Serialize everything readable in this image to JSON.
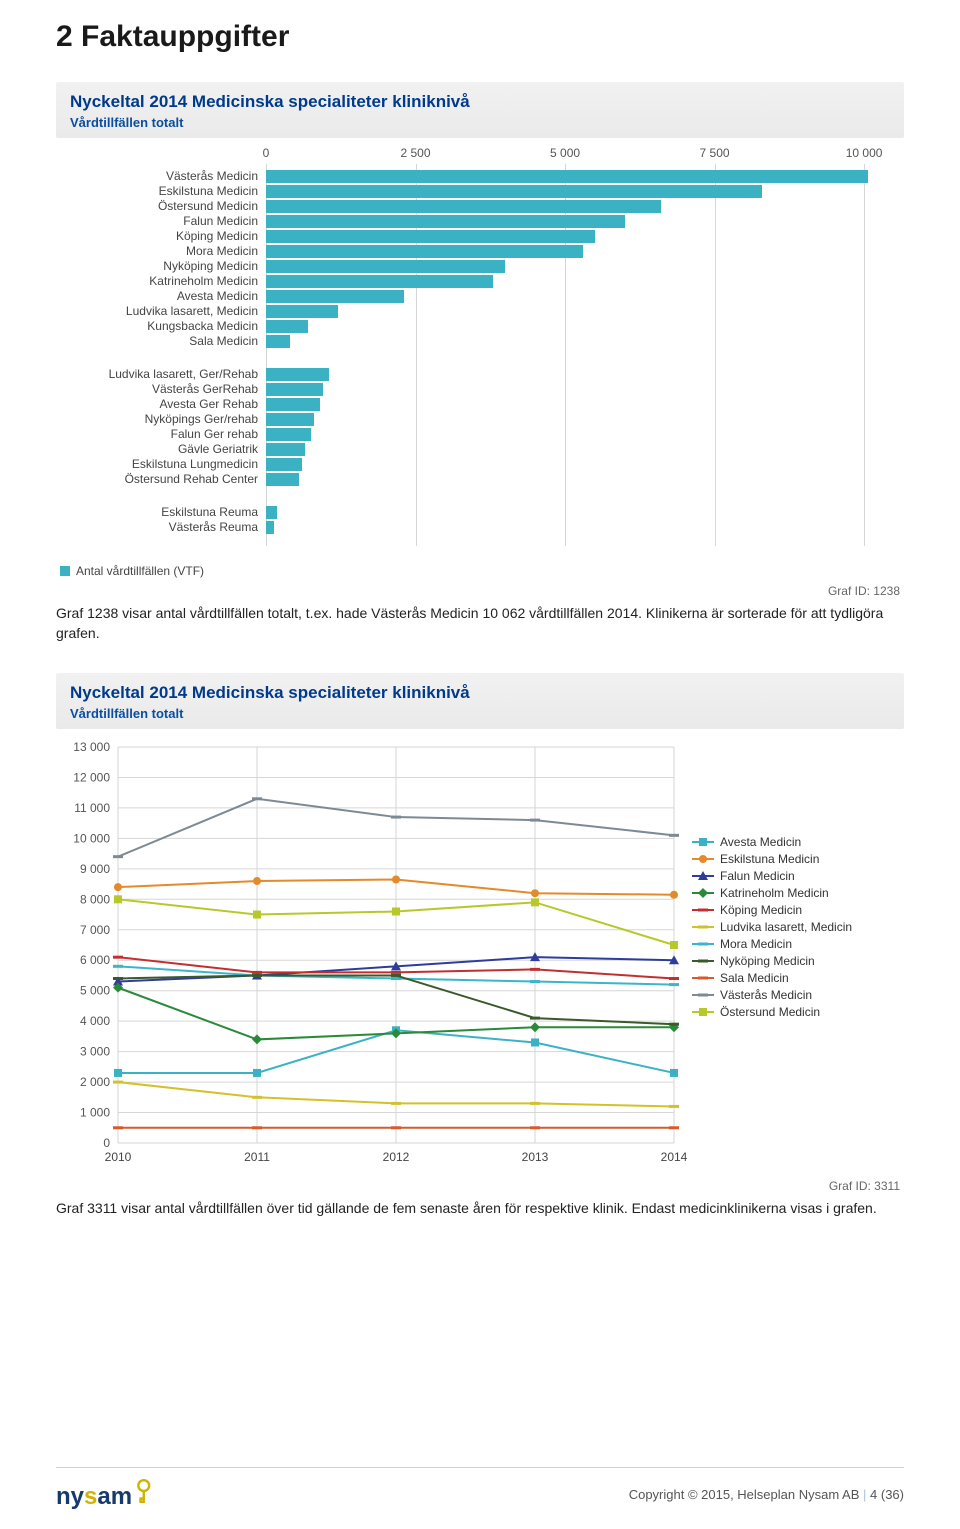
{
  "section_title": "2  Faktauppgifter",
  "chart1": {
    "title": "Nyckeltal 2014 Medicinska specialiteter kliniknivå",
    "subtitle": "Vårdtillfällen totalt",
    "type": "bar",
    "x_ticks": [
      0,
      2500,
      5000,
      7500,
      10000
    ],
    "x_tick_labels": [
      "0",
      "2 500",
      "5 000",
      "7 500",
      "10 000"
    ],
    "xlim": [
      0,
      10500
    ],
    "bar_color": "#3bb2c4",
    "grid_color": "#d6d6d6",
    "background_color": "#ffffff",
    "label_fontsize": 12,
    "groups": [
      {
        "items": [
          {
            "label": "Västerås Medicin",
            "value": 10062
          },
          {
            "label": "Eskilstuna Medicin",
            "value": 8300
          },
          {
            "label": "Östersund Medicin",
            "value": 6600
          },
          {
            "label": "Falun Medicin",
            "value": 6000
          },
          {
            "label": "Köping Medicin",
            "value": 5500
          },
          {
            "label": "Mora Medicin",
            "value": 5300
          },
          {
            "label": "Nyköping Medicin",
            "value": 4000
          },
          {
            "label": "Katrineholm Medicin",
            "value": 3800
          },
          {
            "label": "Avesta Medicin",
            "value": 2300
          },
          {
            "label": "Ludvika lasarett, Medicin",
            "value": 1200
          },
          {
            "label": "Kungsbacka Medicin",
            "value": 700
          },
          {
            "label": "Sala Medicin",
            "value": 400
          }
        ]
      },
      {
        "items": [
          {
            "label": "Ludvika lasarett, Ger/Rehab",
            "value": 1050
          },
          {
            "label": "Västerås GerRehab",
            "value": 950
          },
          {
            "label": "Avesta Ger Rehab",
            "value": 900
          },
          {
            "label": "Nyköpings Ger/rehab",
            "value": 800
          },
          {
            "label": "Falun Ger rehab",
            "value": 750
          },
          {
            "label": "Gävle Geriatrik",
            "value": 650
          },
          {
            "label": "Eskilstuna Lungmedicin",
            "value": 600
          },
          {
            "label": "Östersund Rehab Center",
            "value": 550
          }
        ]
      },
      {
        "items": [
          {
            "label": "Eskilstuna Reuma",
            "value": 180
          },
          {
            "label": "Västerås Reuma",
            "value": 130
          }
        ]
      }
    ],
    "legend": "Antal vårdtillfällen (VTF)",
    "graf_id": "Graf ID: 1238"
  },
  "caption1": "Graf 1238 visar antal vårdtillfällen totalt, t.ex. hade Västerås Medicin 10 062 vårdtillfällen 2014. Klinikerna är sorterade för att tydligöra grafen.",
  "chart2": {
    "title": "Nyckeltal 2014 Medicinska specialiteter kliniknivå",
    "subtitle": "Vårdtillfällen totalt",
    "type": "line",
    "years": [
      2010,
      2011,
      2012,
      2013,
      2014
    ],
    "ylim": [
      0,
      13000
    ],
    "y_ticks": [
      0,
      1000,
      2000,
      3000,
      4000,
      5000,
      6000,
      7000,
      8000,
      9000,
      10000,
      11000,
      12000,
      13000
    ],
    "y_tick_labels": [
      "0",
      "1 000",
      "2 000",
      "3 000",
      "4 000",
      "5 000",
      "6 000",
      "7 000",
      "8 000",
      "9 000",
      "10 000",
      "11 000",
      "12 000",
      "13 000"
    ],
    "grid_color": "#d6d6d6",
    "background_color": "#ffffff",
    "series": [
      {
        "name": "Avesta Medicin",
        "color": "#3bb2c4",
        "marker": "square",
        "values": [
          2300,
          2300,
          3700,
          3300,
          2300
        ]
      },
      {
        "name": "Eskilstuna Medicin",
        "color": "#e48a2a",
        "marker": "circle",
        "values": [
          8400,
          8600,
          8650,
          8200,
          8150
        ]
      },
      {
        "name": "Falun Medicin",
        "color": "#2e3d9c",
        "marker": "triangle",
        "values": [
          5300,
          5500,
          5800,
          6100,
          6000
        ]
      },
      {
        "name": "Katrineholm Medicin",
        "color": "#2a8a3a",
        "marker": "diamond",
        "values": [
          5100,
          3400,
          3600,
          3800,
          3800
        ]
      },
      {
        "name": "Köping Medicin",
        "color": "#c22f2f",
        "marker": "dash",
        "values": [
          6100,
          5600,
          5600,
          5700,
          5400
        ]
      },
      {
        "name": "Ludvika lasarett, Medicin",
        "color": "#d2c22a",
        "marker": "dash",
        "values": [
          2000,
          1500,
          1300,
          1300,
          1200
        ]
      },
      {
        "name": "Mora Medicin",
        "color": "#39b6c9",
        "marker": "dash",
        "values": [
          5800,
          5500,
          5400,
          5300,
          5200
        ]
      },
      {
        "name": "Nyköping Medicin",
        "color": "#3a5a2a",
        "marker": "dash",
        "values": [
          5400,
          5500,
          5500,
          4100,
          3900
        ]
      },
      {
        "name": "Sala Medicin",
        "color": "#d85a2a",
        "marker": "dash",
        "values": [
          500,
          500,
          500,
          500,
          500
        ]
      },
      {
        "name": "Västerås Medicin",
        "color": "#7d8a94",
        "marker": "dash",
        "values": [
          9400,
          11300,
          10700,
          10600,
          10100
        ]
      },
      {
        "name": "Östersund Medicin",
        "color": "#b7c92a",
        "marker": "square",
        "values": [
          8000,
          7500,
          7600,
          7900,
          6500
        ]
      }
    ],
    "graf_id": "Graf ID: 3311"
  },
  "caption2": "Graf 3311 visar antal vårdtillfällen över tid gällande de fem senaste åren för respektive klinik. Endast medicinklinikerna visas i grafen.",
  "footer": {
    "logo_text_1": "ny",
    "logo_text_2": "s",
    "logo_text_3": "am",
    "copyright": "Copyright © 2015, Helseplan Nysam AB",
    "page": "4 (36)"
  }
}
